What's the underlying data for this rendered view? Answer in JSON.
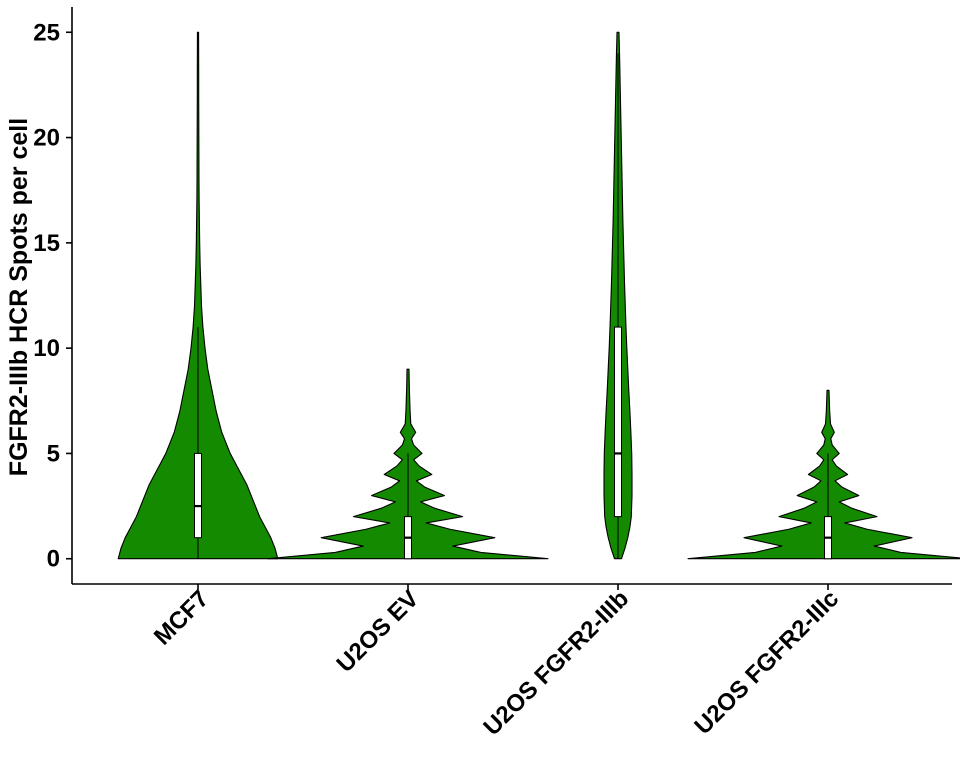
{
  "chart_data": {
    "type": "violin",
    "title": "",
    "xlabel": "",
    "ylabel": "FGFR2-IIIb HCR Spots per cell",
    "ylim": [
      -1.2,
      26.2
    ],
    "yticks": [
      0,
      5,
      10,
      15,
      20,
      25
    ],
    "grid": false,
    "legend": "none",
    "colors": {
      "fill": "#138a00",
      "outline": "#000000",
      "box": "#ffffff"
    },
    "categories": [
      "MCF7",
      "U2OS EV",
      "U2OS FGFR2-IIIb",
      "U2OS FGFR2-IIIc"
    ],
    "groups": [
      {
        "name": "MCF7",
        "box": {
          "q1": 1,
          "median": 2.5,
          "q3": 5,
          "whisker_low": 0,
          "whisker_high": 11
        },
        "density": [
          [
            0,
            0.57
          ],
          [
            0.5,
            0.55
          ],
          [
            1,
            0.52
          ],
          [
            1.5,
            0.48
          ],
          [
            2,
            0.44
          ],
          [
            2.5,
            0.41
          ],
          [
            3,
            0.38
          ],
          [
            3.5,
            0.35
          ],
          [
            4,
            0.31
          ],
          [
            4.5,
            0.27
          ],
          [
            5,
            0.23
          ],
          [
            6,
            0.17
          ],
          [
            7,
            0.13
          ],
          [
            8,
            0.1
          ],
          [
            9,
            0.07
          ],
          [
            10,
            0.05
          ],
          [
            11,
            0.035
          ],
          [
            12,
            0.025
          ],
          [
            13,
            0.02
          ],
          [
            14,
            0.015
          ],
          [
            15,
            0.012
          ],
          [
            16,
            0.01
          ],
          [
            17,
            0.008
          ],
          [
            18,
            0.007
          ],
          [
            20,
            0.006
          ],
          [
            22,
            0.005
          ],
          [
            23,
            0.005
          ],
          [
            25,
            0.004
          ]
        ]
      },
      {
        "name": "U2OS EV",
        "box": {
          "q1": 0,
          "median": 1,
          "q3": 2,
          "whisker_low": 0,
          "whisker_high": 5
        },
        "density": [
          [
            0,
            1.0
          ],
          [
            0.3,
            0.52
          ],
          [
            0.6,
            0.32
          ],
          [
            1,
            0.62
          ],
          [
            1.4,
            0.3
          ],
          [
            1.7,
            0.13
          ],
          [
            2,
            0.39
          ],
          [
            2.4,
            0.19
          ],
          [
            2.7,
            0.09
          ],
          [
            3,
            0.26
          ],
          [
            3.4,
            0.12
          ],
          [
            3.7,
            0.06
          ],
          [
            4,
            0.17
          ],
          [
            4.4,
            0.08
          ],
          [
            4.7,
            0.04
          ],
          [
            5,
            0.1
          ],
          [
            5.4,
            0.04
          ],
          [
            5.7,
            0.025
          ],
          [
            6,
            0.055
          ],
          [
            6.4,
            0.02
          ],
          [
            7,
            0.015
          ],
          [
            8,
            0.01
          ],
          [
            9,
            0.007
          ]
        ]
      },
      {
        "name": "U2OS FGFR2-IIIb",
        "box": {
          "q1": 2,
          "median": 5,
          "q3": 11,
          "whisker_low": 0,
          "whisker_high": 24
        },
        "density": [
          [
            0,
            0.025
          ],
          [
            0.5,
            0.05
          ],
          [
            1,
            0.07
          ],
          [
            1.5,
            0.085
          ],
          [
            2,
            0.095
          ],
          [
            3,
            0.1
          ],
          [
            4,
            0.1
          ],
          [
            5,
            0.098
          ],
          [
            6,
            0.092
          ],
          [
            7,
            0.085
          ],
          [
            8,
            0.077
          ],
          [
            9,
            0.07
          ],
          [
            10,
            0.063
          ],
          [
            11,
            0.057
          ],
          [
            12,
            0.052
          ],
          [
            13,
            0.047
          ],
          [
            14,
            0.043
          ],
          [
            15,
            0.039
          ],
          [
            16,
            0.035
          ],
          [
            17,
            0.032
          ],
          [
            18,
            0.029
          ],
          [
            19,
            0.026
          ],
          [
            20,
            0.023
          ],
          [
            21,
            0.02
          ],
          [
            22,
            0.017
          ],
          [
            23,
            0.014
          ],
          [
            24,
            0.011
          ],
          [
            25,
            0.007
          ]
        ]
      },
      {
        "name": "U2OS FGFR2-IIIc",
        "box": {
          "q1": 0,
          "median": 1,
          "q3": 2,
          "whisker_low": 0,
          "whisker_high": 5
        },
        "density": [
          [
            0,
            1.0
          ],
          [
            0.3,
            0.52
          ],
          [
            0.6,
            0.33
          ],
          [
            1,
            0.6
          ],
          [
            1.4,
            0.28
          ],
          [
            1.7,
            0.12
          ],
          [
            2,
            0.35
          ],
          [
            2.4,
            0.17
          ],
          [
            2.7,
            0.08
          ],
          [
            3,
            0.22
          ],
          [
            3.4,
            0.1
          ],
          [
            3.7,
            0.05
          ],
          [
            4,
            0.14
          ],
          [
            4.4,
            0.06
          ],
          [
            4.7,
            0.03
          ],
          [
            5,
            0.08
          ],
          [
            5.4,
            0.03
          ],
          [
            5.7,
            0.02
          ],
          [
            6,
            0.045
          ],
          [
            6.4,
            0.018
          ],
          [
            7,
            0.012
          ],
          [
            8,
            0.007
          ]
        ]
      }
    ]
  }
}
